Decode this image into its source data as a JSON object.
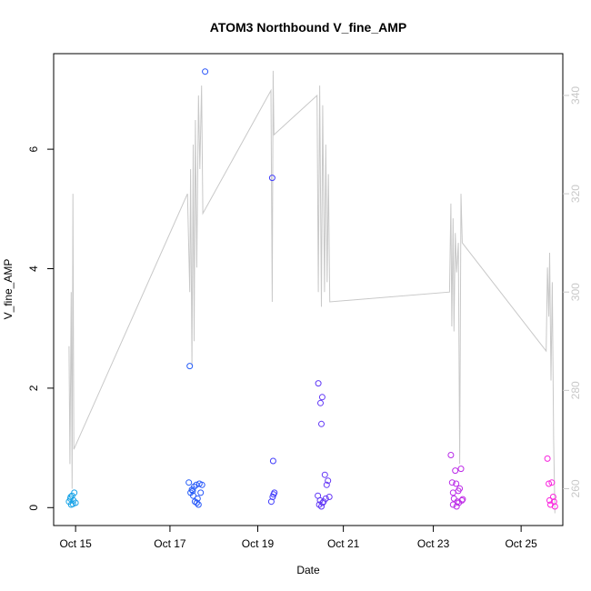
{
  "chart_data": {
    "type": "scatter",
    "title": "ATOM3 Northbound V_fine_AMP",
    "xlabel": "Date",
    "ylabel": "V_fine_AMP",
    "xticks": [
      "Oct 15",
      "Oct 17",
      "Oct 19",
      "Oct 21",
      "Oct 23",
      "Oct 25"
    ],
    "xlim": [
      14.4,
      26.0
    ],
    "ylim": [
      -0.3,
      7.6
    ],
    "yticks": [
      0,
      2,
      4,
      6
    ],
    "y2lim": [
      252.5,
      348.5
    ],
    "y2ticks": [
      260,
      280,
      300,
      320,
      340
    ],
    "grid": false,
    "legend": "none",
    "colors": {
      "axis": "#000000",
      "right_axis": "#c8c8c8",
      "secondary_line": "#c8c8c8",
      "point_gradient_start": "#1aa7e6",
      "point_gradient_mid": "#2b40ff",
      "point_gradient_end": "#ff22dd"
    },
    "series": [
      {
        "axis": "left",
        "kind": "points",
        "points": [
          [
            14.75,
            0.1
          ],
          [
            14.78,
            0.15
          ],
          [
            14.8,
            0.05
          ],
          [
            14.82,
            0.2
          ],
          [
            14.85,
            0.12
          ],
          [
            14.87,
            0.25
          ],
          [
            14.9,
            0.08
          ],
          [
            14.79,
            0.18
          ],
          [
            14.84,
            0.06
          ],
          [
            17.5,
            2.37
          ],
          [
            17.48,
            0.42
          ],
          [
            17.52,
            0.25
          ],
          [
            17.55,
            0.3
          ],
          [
            17.58,
            0.2
          ],
          [
            17.6,
            0.35
          ],
          [
            17.62,
            0.1
          ],
          [
            17.65,
            0.38
          ],
          [
            17.68,
            0.15
          ],
          [
            17.7,
            0.05
          ],
          [
            17.72,
            0.4
          ],
          [
            17.75,
            0.25
          ],
          [
            17.78,
            0.38
          ],
          [
            17.57,
            0.28
          ],
          [
            17.66,
            0.08
          ],
          [
            17.85,
            7.3
          ],
          [
            19.38,
            5.52
          ],
          [
            19.4,
            0.78
          ],
          [
            19.36,
            0.1
          ],
          [
            19.41,
            0.22
          ],
          [
            19.43,
            0.25
          ],
          [
            19.39,
            0.18
          ],
          [
            20.43,
            2.08
          ],
          [
            20.48,
            1.75
          ],
          [
            20.52,
            1.85
          ],
          [
            20.5,
            1.4
          ],
          [
            20.42,
            0.2
          ],
          [
            20.45,
            0.05
          ],
          [
            20.55,
            0.1
          ],
          [
            20.58,
            0.55
          ],
          [
            20.62,
            0.38
          ],
          [
            20.65,
            0.45
          ],
          [
            20.68,
            0.18
          ],
          [
            20.47,
            0.12
          ],
          [
            20.5,
            0.02
          ],
          [
            20.53,
            0.08
          ],
          [
            20.6,
            0.15
          ],
          [
            23.45,
            0.88
          ],
          [
            23.48,
            0.42
          ],
          [
            23.5,
            0.25
          ],
          [
            23.52,
            0.15
          ],
          [
            23.55,
            0.62
          ],
          [
            23.57,
            0.4
          ],
          [
            23.6,
            0.1
          ],
          [
            23.62,
            0.28
          ],
          [
            23.65,
            0.32
          ],
          [
            23.68,
            0.65
          ],
          [
            23.7,
            0.12
          ],
          [
            23.72,
            0.14
          ],
          [
            23.5,
            0.05
          ],
          [
            23.58,
            0.02
          ],
          [
            23.63,
            0.08
          ],
          [
            25.65,
            0.82
          ],
          [
            25.68,
            0.4
          ],
          [
            25.72,
            0.05
          ],
          [
            25.75,
            0.42
          ],
          [
            25.78,
            0.18
          ],
          [
            25.8,
            0.1
          ],
          [
            25.82,
            0.02
          ],
          [
            25.7,
            0.12
          ]
        ]
      },
      {
        "axis": "right",
        "kind": "line",
        "points": [
          [
            14.75,
            289
          ],
          [
            14.77,
            265
          ],
          [
            14.78,
            275
          ],
          [
            14.8,
            300
          ],
          [
            14.82,
            260
          ],
          [
            14.84,
            320
          ],
          [
            14.86,
            268
          ],
          [
            17.45,
            320
          ],
          [
            17.5,
            300
          ],
          [
            17.52,
            325
          ],
          [
            17.55,
            285
          ],
          [
            17.58,
            330
          ],
          [
            17.6,
            290
          ],
          [
            17.63,
            335
          ],
          [
            17.66,
            305
          ],
          [
            17.7,
            340
          ],
          [
            17.73,
            325
          ],
          [
            17.77,
            342
          ],
          [
            17.8,
            316
          ],
          [
            19.35,
            341
          ],
          [
            19.38,
            298
          ],
          [
            19.4,
            345
          ],
          [
            19.42,
            332
          ],
          [
            20.4,
            340
          ],
          [
            20.43,
            300
          ],
          [
            20.46,
            342
          ],
          [
            20.5,
            297
          ],
          [
            20.53,
            338
          ],
          [
            20.57,
            300
          ],
          [
            20.6,
            330
          ],
          [
            20.63,
            302
          ],
          [
            20.66,
            324
          ],
          [
            20.69,
            298
          ],
          [
            23.42,
            300
          ],
          [
            23.45,
            318
          ],
          [
            23.47,
            293
          ],
          [
            23.5,
            315
          ],
          [
            23.52,
            292
          ],
          [
            23.55,
            312
          ],
          [
            23.58,
            304
          ],
          [
            23.62,
            310
          ],
          [
            23.65,
            265
          ],
          [
            23.68,
            320
          ],
          [
            23.71,
            310
          ],
          [
            25.62,
            288
          ],
          [
            25.65,
            305
          ],
          [
            25.68,
            295
          ],
          [
            25.7,
            308
          ],
          [
            25.73,
            282
          ],
          [
            25.76,
            302
          ],
          [
            25.79,
            270
          ],
          [
            25.82,
            255
          ]
        ]
      }
    ]
  }
}
